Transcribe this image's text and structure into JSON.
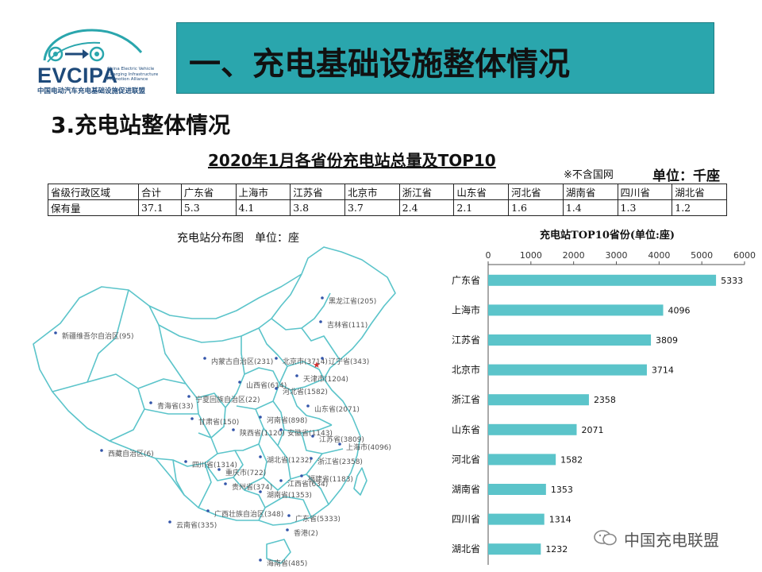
{
  "logo": {
    "name": "EVCIPA",
    "en_lines": [
      "China Electric Vehicle",
      "Charging Infrastructure",
      "Promotion Alliance"
    ],
    "cn": "中国电动汽车充电基础设施促进联盟"
  },
  "banner_title": "一、充电基础设施整体情况",
  "section_title": "3.充电站整体情况",
  "table": {
    "title": "2020年1月各省份充电站总量及TOP10",
    "note": "※不含国网",
    "unit": "单位：千座",
    "headers": [
      "省级行政区域",
      "合计",
      "广东省",
      "上海市",
      "江苏省",
      "北京市",
      "浙江省",
      "山东省",
      "河北省",
      "湖南省",
      "四川省",
      "湖北省"
    ],
    "values": [
      "保有量",
      "37.1",
      "5.3",
      "4.1",
      "3.8",
      "3.7",
      "2.4",
      "2.1",
      "1.6",
      "1.4",
      "1.3",
      "1.2"
    ]
  },
  "map": {
    "title": "充电站分布图　单位：座",
    "labels": [
      {
        "text": "黑龙江省(205)"
      },
      {
        "text": "吉林省(111)"
      },
      {
        "text": "新疆维吾尔自治区(95)"
      },
      {
        "text": "内蒙古自治区(231)"
      },
      {
        "text": "北京市(3714)"
      },
      {
        "text": "辽宁省(343)"
      },
      {
        "text": "天津市(1204)"
      },
      {
        "text": "山西省(614)"
      },
      {
        "text": "河北省(1582)"
      },
      {
        "text": "青海省(33)"
      },
      {
        "text": "宁夏回族自治区(22)"
      },
      {
        "text": "山东省(2071)"
      },
      {
        "text": "甘肃省(150)"
      },
      {
        "text": "河南省(898)"
      },
      {
        "text": "陕西省(1120)"
      },
      {
        "text": "安徽省(1143)"
      },
      {
        "text": "江苏省(3809)"
      },
      {
        "text": "上海市(4096)"
      },
      {
        "text": "西藏自治区(6)"
      },
      {
        "text": "四川省(1314)"
      },
      {
        "text": "湖北省(1232)"
      },
      {
        "text": "浙江省(2358)"
      },
      {
        "text": "重庆市(722)"
      },
      {
        "text": "贵州省(374)"
      },
      {
        "text": "湖南省(1353)"
      },
      {
        "text": "江西省(634)"
      },
      {
        "text": "福建省(1183)"
      },
      {
        "text": "广西壮族自治区(348)"
      },
      {
        "text": "云南省(335)"
      },
      {
        "text": "广东省(5333)"
      },
      {
        "text": "香港(2)"
      },
      {
        "text": "海南省(485)"
      }
    ]
  },
  "chart_data": {
    "type": "bar",
    "orientation": "horizontal",
    "title": "充电站TOP10省份(单位:座)",
    "categories": [
      "广东省",
      "上海市",
      "江苏省",
      "北京市",
      "浙江省",
      "山东省",
      "河北省",
      "湖南省",
      "四川省",
      "湖北省"
    ],
    "values": [
      5333,
      4096,
      3809,
      3714,
      2358,
      2071,
      1582,
      1353,
      1314,
      1232
    ],
    "xlim": [
      0,
      6000
    ],
    "xticks": [
      0,
      1000,
      2000,
      3000,
      4000,
      5000,
      6000
    ],
    "axis_position": "top",
    "bar_color": "#5bc4ca",
    "grid": false,
    "legend": "none"
  },
  "watermark": "中国充电联盟",
  "colors": {
    "banner": "#2aa6ad",
    "map_border": "#5bc4ca",
    "bar": "#5bc4ca",
    "brand": "#1e4a7a"
  }
}
